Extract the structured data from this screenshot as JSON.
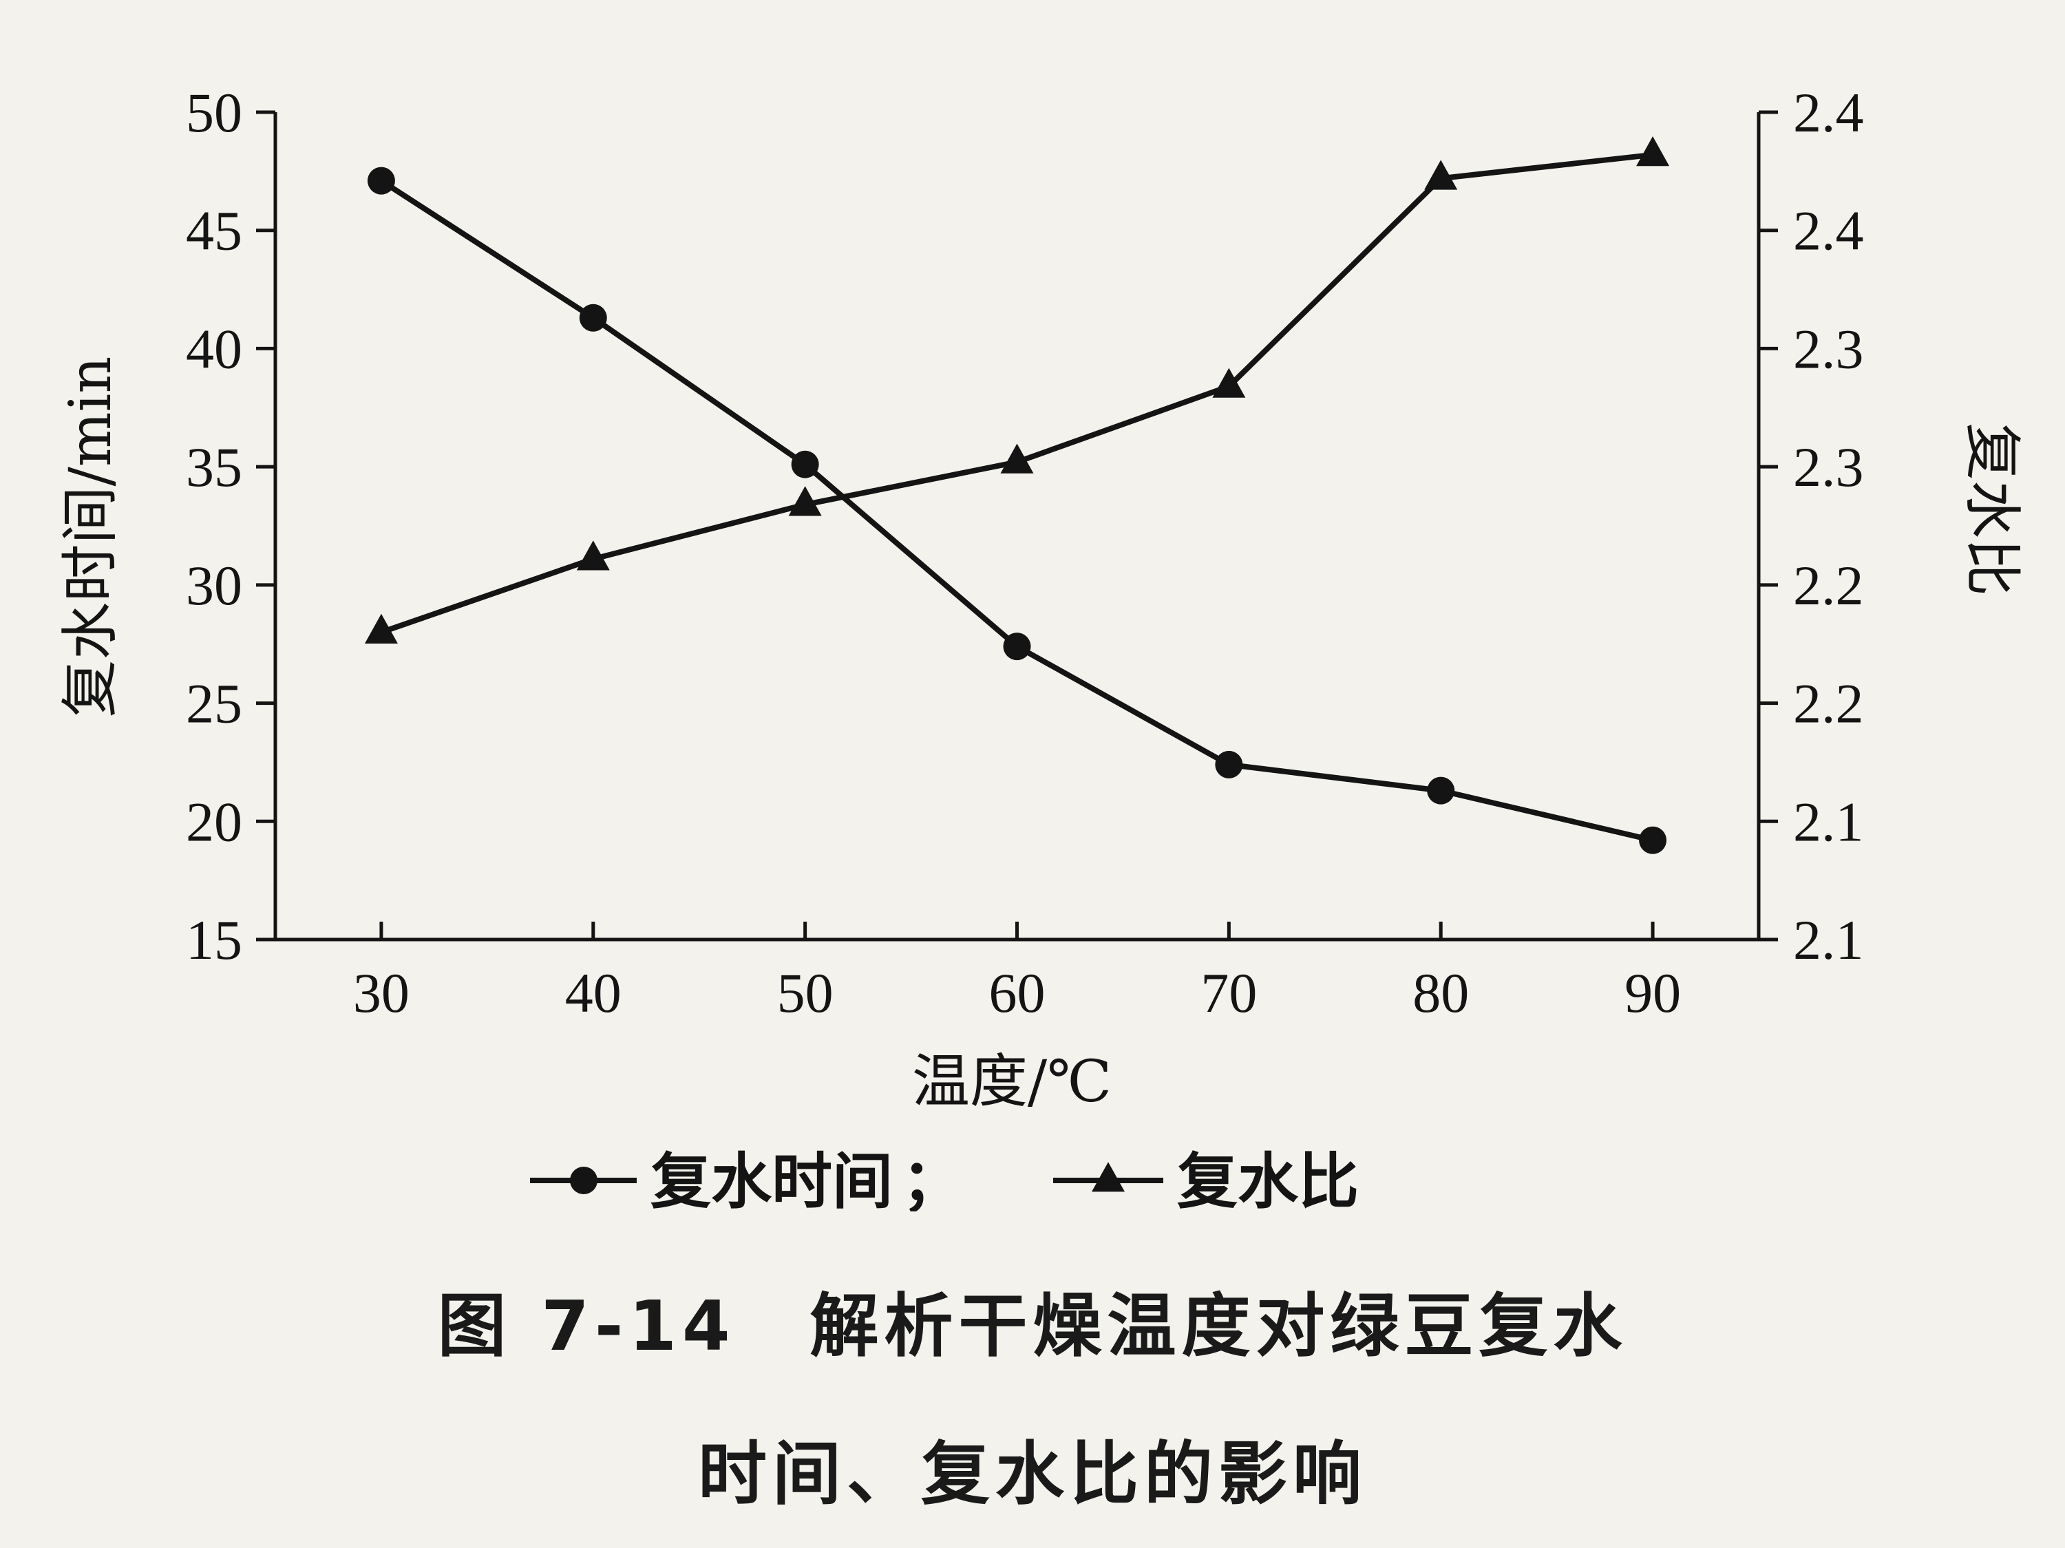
{
  "chart_data": {
    "type": "line",
    "x": [
      30,
      40,
      50,
      60,
      70,
      80,
      90
    ],
    "xlabel": "温度/℃",
    "xticks": [
      "30",
      "40",
      "50",
      "60",
      "70",
      "80",
      "90"
    ],
    "ylabel_left": "复水时间/min",
    "ylim_left": [
      15,
      50
    ],
    "yticks_left": [
      "15",
      "20",
      "25",
      "30",
      "35",
      "40",
      "45",
      "50"
    ],
    "ylabel_right": "复水比",
    "yticks_right": [
      "2.1",
      "2.1",
      "2.2",
      "2.2",
      "2.3",
      "2.3",
      "2.4",
      "2.4"
    ],
    "series": [
      {
        "name": "复水时间",
        "axis": "left",
        "marker": "circle",
        "values": [
          47.1,
          41.3,
          35.1,
          27.4,
          22.4,
          21.3,
          19.2
        ]
      },
      {
        "name": "复水比",
        "axis": "right",
        "marker": "triangle",
        "values": [
          28.0,
          31.1,
          33.4,
          35.2,
          38.4,
          47.2,
          48.2
        ]
      }
    ],
    "legend_separator": "；",
    "legend_position": "bottom",
    "grid": false
  },
  "caption": {
    "line1": "图 7-14　解析干燥温度对绿豆复水",
    "line2": "时间、复水比的影响"
  },
  "colors": {
    "line": "#141414",
    "background": "#f3f2ec"
  }
}
